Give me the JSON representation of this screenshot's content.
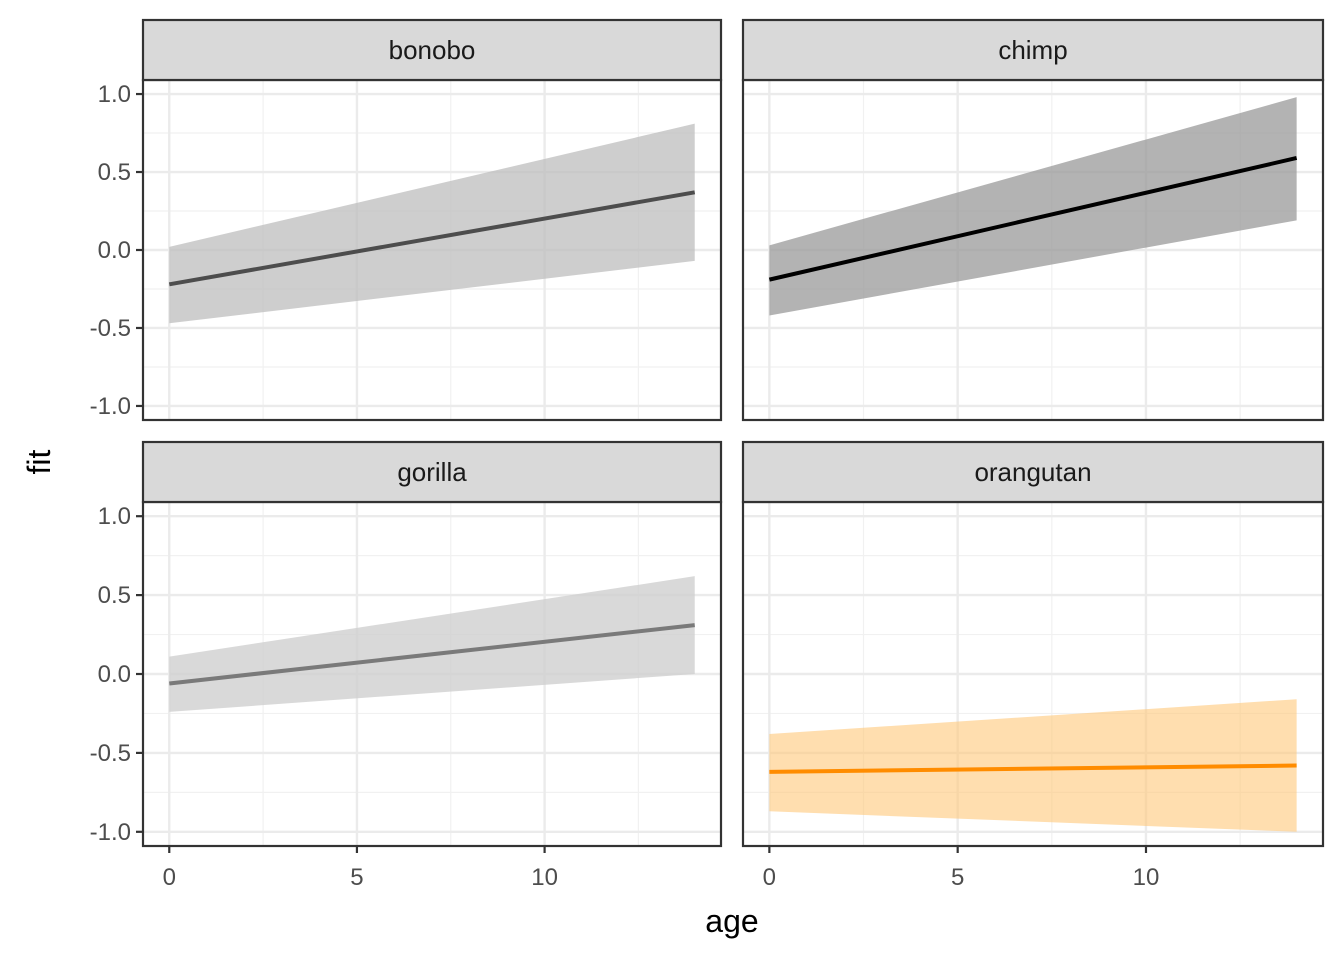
{
  "chart_data": {
    "type": "line",
    "xlabel": "age",
    "ylabel": "fit",
    "xlim": [
      -0.7,
      14.7
    ],
    "ylim": [
      -1.09,
      1.09
    ],
    "x_ticks": [
      0,
      5,
      10
    ],
    "x_tick_labels": [
      "0",
      "5",
      "10"
    ],
    "y_ticks": [
      1.0,
      0.5,
      0.0,
      -0.5,
      -1.0
    ],
    "y_tick_labels": [
      "1.0",
      "0.5",
      "0.0",
      "-0.5",
      "-1.0"
    ],
    "grid": true,
    "panels": [
      {
        "name": "bonobo",
        "line_color": "#4d4d4d",
        "band_color": "#bdbdbd",
        "band_opacity": 0.75,
        "x": [
          0,
          14
        ],
        "fit": [
          -0.22,
          0.37
        ],
        "lower": [
          -0.47,
          -0.07
        ],
        "upper": [
          0.02,
          0.81
        ]
      },
      {
        "name": "chimp",
        "line_color": "#000000",
        "band_color": "#999999",
        "band_opacity": 0.75,
        "x": [
          0,
          14
        ],
        "fit": [
          -0.19,
          0.59
        ],
        "lower": [
          -0.42,
          0.19
        ],
        "upper": [
          0.03,
          0.98
        ]
      },
      {
        "name": "gorilla",
        "line_color": "#7a7a7a",
        "band_color": "#d0d0d0",
        "band_opacity": 0.8,
        "x": [
          0,
          14
        ],
        "fit": [
          -0.06,
          0.31
        ],
        "lower": [
          -0.24,
          0.0
        ],
        "upper": [
          0.11,
          0.62
        ]
      },
      {
        "name": "orangutan",
        "line_color": "#ff8c00",
        "band_color": "#ffc87a",
        "band_opacity": 0.6,
        "x": [
          0,
          14
        ],
        "fit": [
          -0.62,
          -0.58
        ],
        "lower": [
          -0.87,
          -1.0
        ],
        "upper": [
          -0.38,
          -0.16
        ]
      }
    ]
  }
}
